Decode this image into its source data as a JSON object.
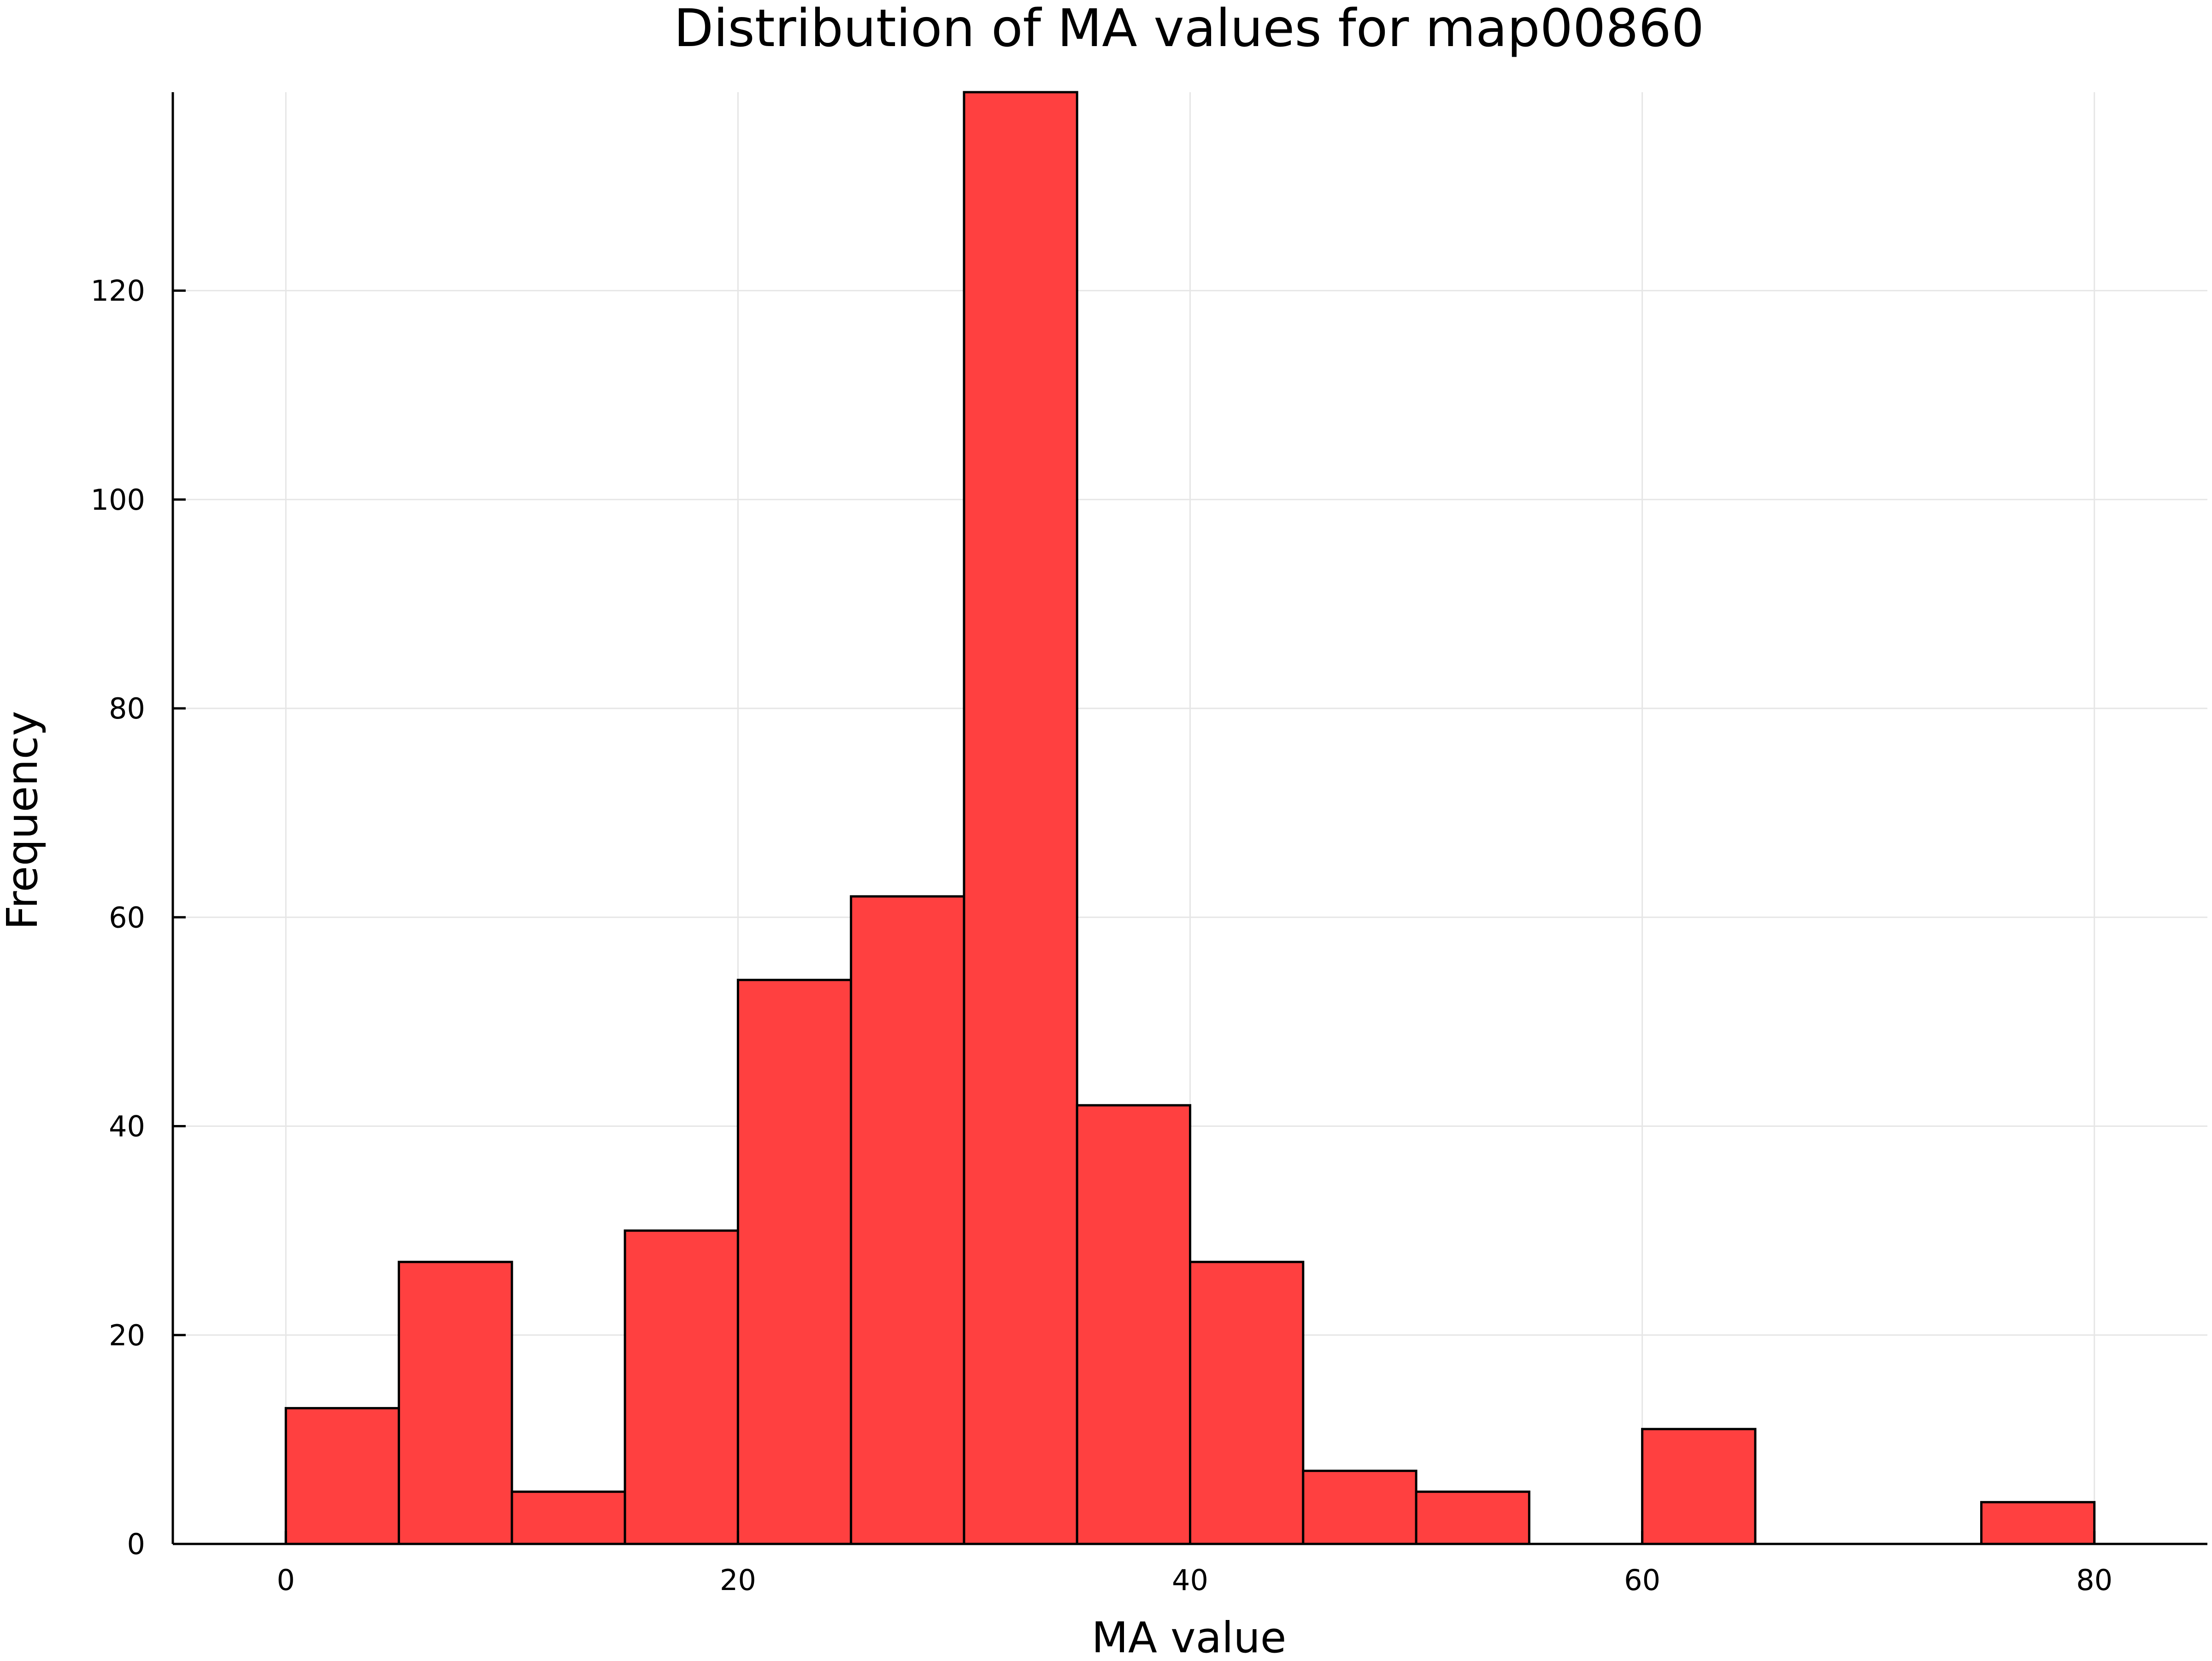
{
  "chart_data": {
    "type": "bar",
    "title": "Distribution of MA values for map00860",
    "xlabel": "MA value",
    "ylabel": "Frequency",
    "bar_color": "#ff4040",
    "bin_width": 5,
    "bins": [
      {
        "start": 0,
        "end": 5,
        "count": 13
      },
      {
        "start": 5,
        "end": 10,
        "count": 27
      },
      {
        "start": 10,
        "end": 15,
        "count": 5
      },
      {
        "start": 15,
        "end": 20,
        "count": 30
      },
      {
        "start": 20,
        "end": 25,
        "count": 54
      },
      {
        "start": 25,
        "end": 30,
        "count": 62
      },
      {
        "start": 30,
        "end": 35,
        "count": 139
      },
      {
        "start": 35,
        "end": 40,
        "count": 42
      },
      {
        "start": 40,
        "end": 45,
        "count": 27
      },
      {
        "start": 45,
        "end": 50,
        "count": 7
      },
      {
        "start": 50,
        "end": 55,
        "count": 5
      },
      {
        "start": 55,
        "end": 60,
        "count": 0
      },
      {
        "start": 60,
        "end": 65,
        "count": 11
      },
      {
        "start": 65,
        "end": 70,
        "count": 0
      },
      {
        "start": 70,
        "end": 75,
        "count": 0
      },
      {
        "start": 75,
        "end": 80,
        "count": 4
      }
    ],
    "xlim": [
      -5,
      85
    ],
    "ylim": [
      0,
      139
    ],
    "xticks": [
      0,
      20,
      40,
      60,
      80
    ],
    "yticks": [
      0,
      20,
      40,
      60,
      80,
      100,
      120
    ],
    "grid": true,
    "legend": "none"
  }
}
